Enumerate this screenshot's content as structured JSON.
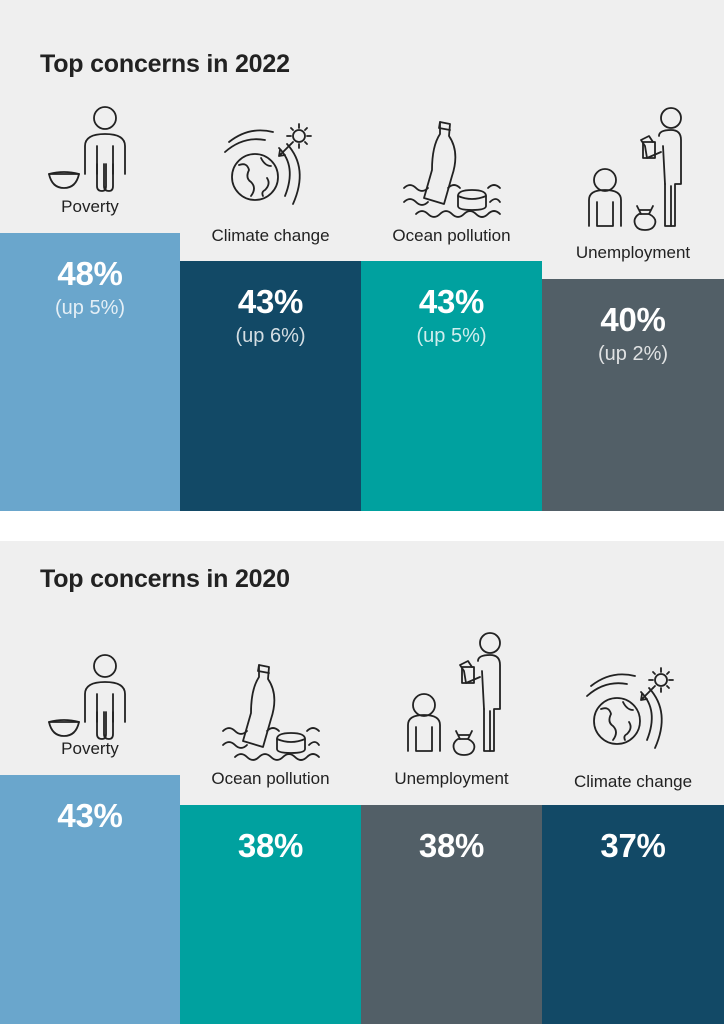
{
  "colors": {
    "background": "#efefef",
    "poverty": "#6aa6cc",
    "climate_change": "#124966",
    "ocean_pollution": "#00a19f",
    "unemployment": "#525f67",
    "text": "#222222"
  },
  "chart_data": [
    {
      "type": "bar",
      "title": "Top concerns in 2022",
      "unit": "%",
      "categories": [
        "Poverty",
        "Climate change",
        "Ocean pollution",
        "Unemployment"
      ],
      "values": [
        48,
        43,
        43,
        40
      ],
      "value_labels": [
        "48%",
        "43%",
        "43%",
        "40%"
      ],
      "changes": [
        "(up 5%)",
        "(up 6%)",
        "(up 5%)",
        "(up 2%)"
      ],
      "icons": [
        "poverty-icon",
        "climate-change-icon",
        "ocean-pollution-icon",
        "unemployment-icon"
      ],
      "bar_colors": [
        "#6aa6cc",
        "#124966",
        "#00a19f",
        "#525f67"
      ]
    },
    {
      "type": "bar",
      "title": "Top concerns in 2020",
      "unit": "%",
      "categories": [
        "Poverty",
        "Ocean pollution",
        "Unemployment",
        "Climate change"
      ],
      "values": [
        43,
        38,
        38,
        37
      ],
      "value_labels": [
        "43%",
        "38%",
        "38%",
        "37%"
      ],
      "icons": [
        "poverty-icon",
        "ocean-pollution-icon",
        "unemployment-icon",
        "climate-change-icon"
      ],
      "bar_colors": [
        "#6aa6cc",
        "#00a19f",
        "#525f67",
        "#124966"
      ]
    }
  ]
}
